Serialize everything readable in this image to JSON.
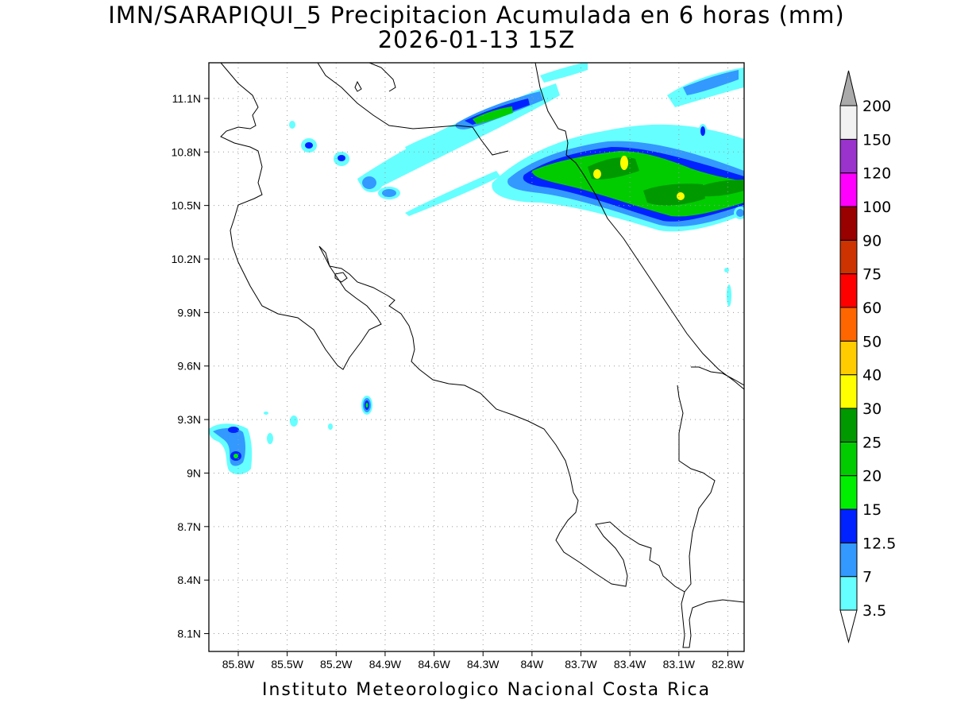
{
  "title": {
    "line1": "IMN/SARAPIQUI_5 Precipitacion Acumulada en 6 horas (mm)",
    "line2": "2026-01-13 15Z"
  },
  "footer": "Instituto Meteorologico Nacional Costa Rica",
  "map": {
    "lon_range": [
      -85.98,
      -82.7
    ],
    "lat_range": [
      8.0,
      11.3
    ],
    "lon_ticks": [
      {
        "value": -85.8,
        "label": "85.8W"
      },
      {
        "value": -85.5,
        "label": "85.5W"
      },
      {
        "value": -85.2,
        "label": "85.2W"
      },
      {
        "value": -84.9,
        "label": "84.9W"
      },
      {
        "value": -84.6,
        "label": "84.6W"
      },
      {
        "value": -84.3,
        "label": "84.3W"
      },
      {
        "value": -84.0,
        "label": "84W"
      },
      {
        "value": -83.7,
        "label": "83.7W"
      },
      {
        "value": -83.4,
        "label": "83.4W"
      },
      {
        "value": -83.1,
        "label": "83.1W"
      },
      {
        "value": -82.8,
        "label": "82.8W"
      }
    ],
    "lat_ticks": [
      {
        "value": 11.1,
        "label": "11.1N"
      },
      {
        "value": 10.8,
        "label": "10.8N"
      },
      {
        "value": 10.5,
        "label": "10.5N"
      },
      {
        "value": 10.2,
        "label": "10.2N"
      },
      {
        "value": 9.9,
        "label": "9.9N"
      },
      {
        "value": 9.6,
        "label": "9.6N"
      },
      {
        "value": 9.3,
        "label": "9.3N"
      },
      {
        "value": 9.0,
        "label": "9N"
      },
      {
        "value": 8.7,
        "label": "8.7N"
      },
      {
        "value": 8.4,
        "label": "8.4N"
      },
      {
        "value": 8.1,
        "label": "8.1N"
      }
    ],
    "grid": true
  },
  "colorbar": {
    "levels": [
      "3.5",
      "7",
      "12.5",
      "15",
      "20",
      "25",
      "30",
      "40",
      "50",
      "60",
      "75",
      "90",
      "100",
      "120",
      "150",
      "200"
    ],
    "colors": [
      "#66ffff",
      "#3399ff",
      "#0022ff",
      "#00ee00",
      "#00cc00",
      "#009900",
      "#ffff00",
      "#ffcc00",
      "#ff6600",
      "#ff0000",
      "#cc3300",
      "#990000",
      "#ff00ff",
      "#9933cc",
      "#f2f2f2",
      "#aaaaaa"
    ]
  }
}
